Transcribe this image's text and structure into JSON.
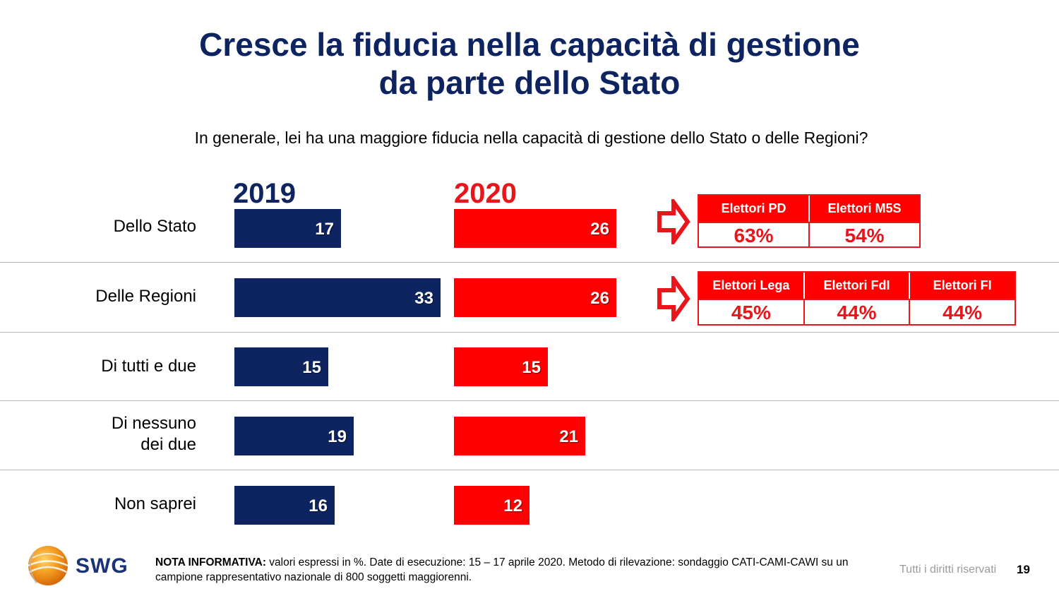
{
  "title": {
    "line1": "Cresce la fiducia nella capacità di gestione",
    "line2": "da parte dello Stato"
  },
  "question": "In generale, lei ha una maggiore fiducia nella capacità di gestione dello Stato o delle Regioni?",
  "colors": {
    "navy": "#0d2461",
    "red": "#fe0000"
  },
  "chart_data": {
    "type": "bar",
    "orientation": "horizontal",
    "categories": [
      "Dello Stato",
      "Delle Regioni",
      "Di tutti e due",
      "Di nessuno dei due",
      "Non saprei"
    ],
    "category_lines": [
      [
        "Dello Stato"
      ],
      [
        "Delle Regioni"
      ],
      [
        "Di tutti e due"
      ],
      [
        "Di nessuno",
        "dei due"
      ],
      [
        "Non saprei"
      ]
    ],
    "series": [
      {
        "name": "2019",
        "values": [
          17,
          33,
          15,
          19,
          16
        ],
        "color": "#0d2461"
      },
      {
        "name": "2020",
        "values": [
          26,
          26,
          15,
          21,
          12
        ],
        "color": "#fe0000"
      }
    ],
    "unit": "%"
  },
  "callouts": [
    {
      "headers": [
        "Elettori PD",
        "Elettori M5S"
      ],
      "values": [
        "63%",
        "54%"
      ]
    },
    {
      "headers": [
        "Elettori Lega",
        "Elettori FdI",
        "Elettori FI"
      ],
      "values": [
        "45%",
        "44%",
        "44%"
      ]
    }
  ],
  "footer": {
    "logo_text": "SWG",
    "note_label": "NOTA INFORMATIVA:",
    "note_text": " valori espressi in %. Date di esecuzione: 15 – 17 aprile 2020. Metodo di rilevazione: sondaggio CATI-CAMI-CAWI su un campione rappresentativo nazionale di 800 soggetti maggiorenni.",
    "rights": "Tutti i diritti riservati",
    "page": "19"
  }
}
